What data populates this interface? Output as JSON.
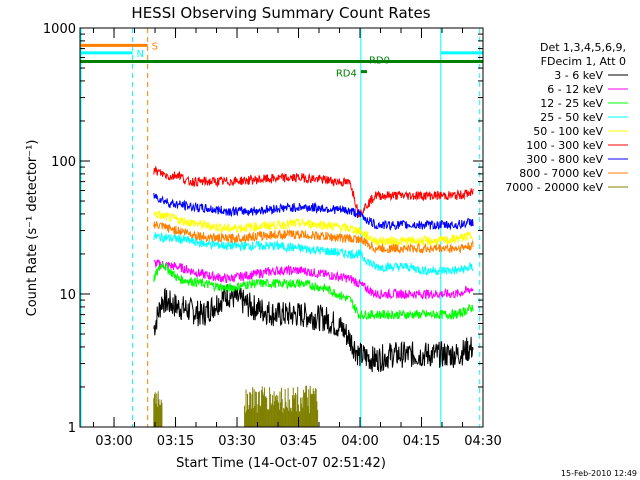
{
  "chart_data": {
    "type": "line",
    "title": "HESSI Observing Summary Count Rates",
    "xlabel": "Start Time (14-Oct-07 02:51:42)",
    "ylabel": "Count Rate (s⁻¹ detector⁻¹)",
    "ylog": true,
    "ylim": [
      1,
      1000
    ],
    "xlim_minutes": [
      0,
      98.3
    ],
    "xticks": [
      {
        "label": "03:00",
        "min": 8.3
      },
      {
        "label": "03:15",
        "min": 23.3
      },
      {
        "label": "03:30",
        "min": 38.3
      },
      {
        "label": "03:45",
        "min": 53.3
      },
      {
        "label": "04:00",
        "min": 68.3
      },
      {
        "label": "04:15",
        "min": 83.3
      },
      {
        "label": "04:30",
        "min": 98.3
      }
    ],
    "yticks": [
      {
        "label": "1",
        "val": 1
      },
      {
        "label": "10",
        "val": 10
      },
      {
        "label": "100",
        "val": 100
      },
      {
        "label": "1000",
        "val": 1000
      }
    ],
    "legend_title": [
      "Det 1,3,4,5,6,9,",
      "FDecim 1, Att 0"
    ],
    "legend_placement": "right",
    "series": [
      {
        "name": "3 - 6 keV",
        "color": "#000000",
        "x": [
          18,
          20,
          24,
          30,
          36,
          42,
          48,
          54,
          60,
          64,
          66,
          68,
          72,
          76,
          80,
          84,
          88,
          92,
          96
        ],
        "values": [
          5.5,
          9.0,
          8.0,
          7.0,
          10.0,
          8.0,
          7.0,
          7.0,
          6.5,
          5.5,
          4.5,
          3.5,
          3.2,
          3.5,
          3.5,
          3.5,
          3.5,
          3.5,
          4.0
        ]
      },
      {
        "name": "6 - 12 keV",
        "color": "#ff00ff",
        "x": [
          18,
          24,
          30,
          36,
          42,
          48,
          54,
          60,
          66,
          68,
          72,
          76,
          80,
          84,
          88,
          92,
          96
        ],
        "values": [
          17,
          16,
          14,
          13,
          14,
          15,
          15,
          14,
          13,
          12,
          10,
          10,
          10,
          10,
          10,
          10,
          11
        ]
      },
      {
        "name": "12 - 25 keV",
        "color": "#00ff00",
        "x": [
          18,
          20,
          24,
          30,
          36,
          42,
          48,
          54,
          60,
          66,
          68,
          72,
          76,
          80,
          84,
          88,
          92,
          96
        ],
        "values": [
          13,
          17,
          13,
          12,
          11,
          12,
          12,
          12,
          11,
          9,
          7,
          7,
          7,
          7,
          7,
          7,
          7,
          8
        ]
      },
      {
        "name": "25 - 50 keV",
        "color": "#00ffff",
        "x": [
          18,
          24,
          30,
          36,
          42,
          48,
          54,
          60,
          66,
          68,
          72,
          76,
          80,
          84,
          88,
          92,
          96
        ],
        "values": [
          27,
          26,
          24,
          23,
          23,
          23,
          22,
          21,
          20,
          20,
          16,
          16,
          16,
          15,
          15,
          15,
          16
        ]
      },
      {
        "name": "50 - 100 keV",
        "color": "#ffff00",
        "x": [
          18,
          24,
          30,
          36,
          42,
          48,
          54,
          60,
          66,
          68,
          72,
          76,
          80,
          84,
          88,
          92,
          96
        ],
        "values": [
          40,
          36,
          33,
          31,
          32,
          33,
          34,
          33,
          31,
          30,
          25,
          25,
          25,
          25,
          25,
          26,
          28
        ]
      },
      {
        "name": "100 - 300 keV",
        "color": "#ff0000",
        "x": [
          18,
          22,
          24,
          26,
          30,
          36,
          42,
          48,
          54,
          60,
          66,
          68,
          72,
          76,
          80,
          84,
          88,
          92,
          96
        ],
        "values": [
          85,
          76,
          80,
          70,
          70,
          70,
          72,
          74,
          75,
          72,
          68,
          40,
          55,
          55,
          55,
          55,
          55,
          55,
          58
        ]
      },
      {
        "name": "300 - 800 keV",
        "color": "#0000ff",
        "x": [
          18,
          22,
          26,
          30,
          36,
          42,
          48,
          54,
          60,
          66,
          68,
          72,
          76,
          80,
          84,
          88,
          92,
          96
        ],
        "values": [
          55,
          48,
          46,
          44,
          42,
          42,
          44,
          45,
          44,
          42,
          40,
          33,
          33,
          33,
          33,
          33,
          33,
          35
        ]
      },
      {
        "name": "800 - 7000 keV",
        "color": "#ff8000",
        "x": [
          18,
          24,
          30,
          36,
          42,
          48,
          54,
          60,
          66,
          68,
          72,
          76,
          80,
          84,
          88,
          92,
          96
        ],
        "values": [
          33,
          30,
          27,
          26,
          27,
          28,
          28,
          27,
          26,
          26,
          22,
          22,
          22,
          22,
          22,
          22,
          23
        ]
      },
      {
        "name": "7000 - 20000 keV",
        "color": "#808000",
        "x": [
          18,
          19,
          20,
          40,
          42,
          46,
          48,
          52,
          54,
          56,
          58
        ],
        "values": [
          2.0,
          1.6,
          2.0,
          2.0,
          1.5,
          2.0,
          1.6,
          2.0,
          1.5,
          2.0,
          1.7
        ]
      }
    ],
    "state_bars": [
      {
        "label": "S",
        "color": "#ff8000",
        "x0": 0,
        "x1": 16.5,
        "y": 740
      },
      {
        "label": "N",
        "color": "#00ffff",
        "x0": 0,
        "x1": 12.8,
        "y": 650
      },
      {
        "label": "RD0",
        "color": "#008000",
        "x0": 0,
        "x1": 98.3,
        "y": 560
      },
      {
        "label": "RD4",
        "color": "#008000",
        "x0": 68.5,
        "x1": 70,
        "y": 470
      },
      {
        "label": "",
        "color": "#00ffff",
        "x0": 88,
        "x1": 98.3,
        "y": 650
      }
    ],
    "vlines": [
      {
        "min": 12.8,
        "color": "#00ffff",
        "style": "dashed"
      },
      {
        "min": 16.5,
        "color": "#ff8000",
        "style": "dashed"
      },
      {
        "min": 68.5,
        "color": "#00ffff",
        "style": "solid"
      },
      {
        "min": 88,
        "color": "#00ffff",
        "style": "solid"
      },
      {
        "min": 97.5,
        "color": "#00ffff",
        "style": "dashed"
      }
    ]
  },
  "footer_date": "15-Feb-2010 12:49"
}
